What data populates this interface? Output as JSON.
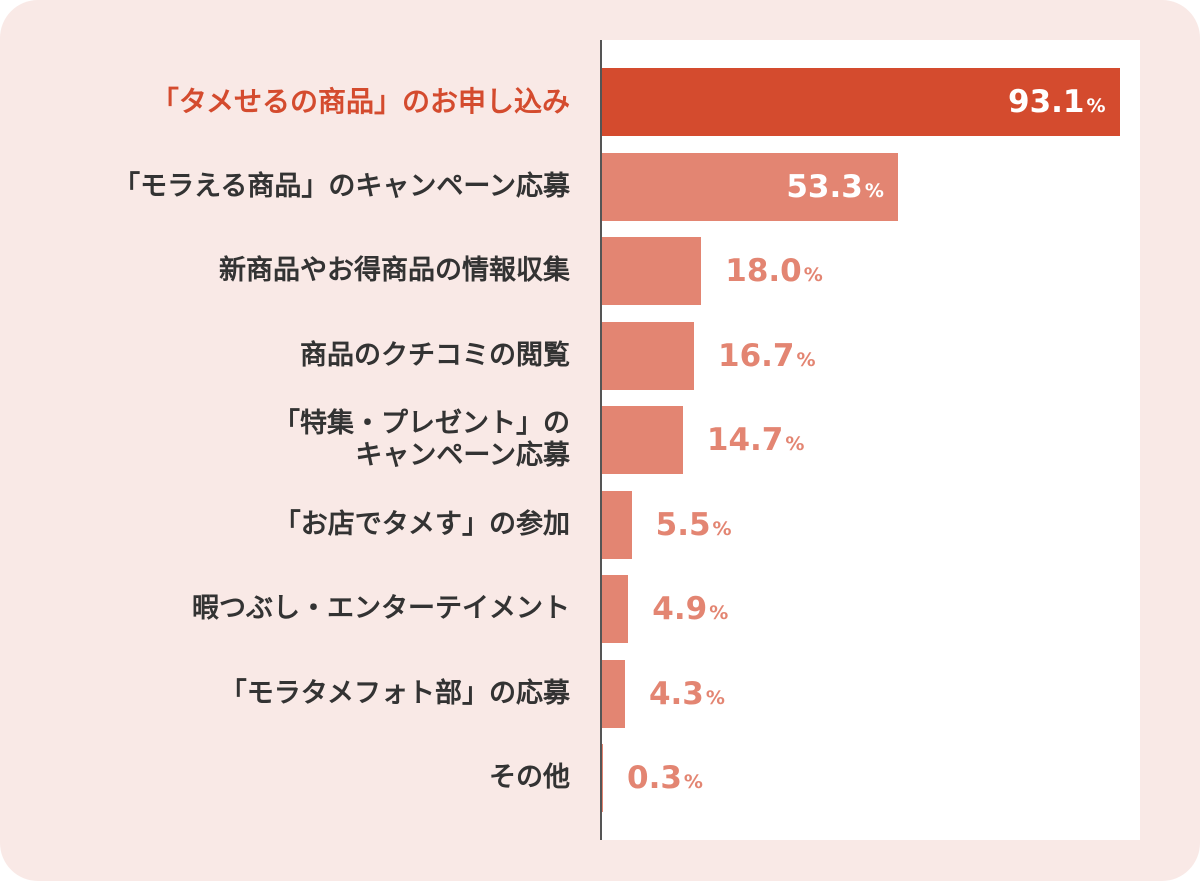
{
  "chart_data": {
    "type": "bar",
    "orientation": "horizontal",
    "unit": "%",
    "xlim": [
      0,
      100
    ],
    "categories": [
      "「タメせるの商品」のお申し込み",
      "「モラえる商品」のキャンペーン応募",
      "新商品やお得商品の情報収集",
      "商品のクチコミの閲覧",
      "「特集・プレゼント」の\nキャンペーン応募",
      "「お店でタメす」の参加",
      "暇つぶし・エンターテイメント",
      "「モラタメフォト部」の応募",
      "その他"
    ],
    "values": [
      93.1,
      53.3,
      18.0,
      16.7,
      14.7,
      5.5,
      4.9,
      4.3,
      0.3
    ],
    "value_labels": [
      "93.1",
      "53.3",
      "18.0",
      "16.7",
      "14.7",
      "5.5",
      "4.9",
      "4.3",
      "0.3"
    ],
    "percent_sign": "%",
    "highlight_index": 0,
    "colors": {
      "highlight": "#d44b2e",
      "bar": "#e38572",
      "label_text": "#333333",
      "value_outside": "#e38572",
      "value_inside": "#ffffff",
      "card_bg": "#f9e9e6",
      "plot_bg": "#ffffff",
      "axis": "#555555"
    }
  }
}
